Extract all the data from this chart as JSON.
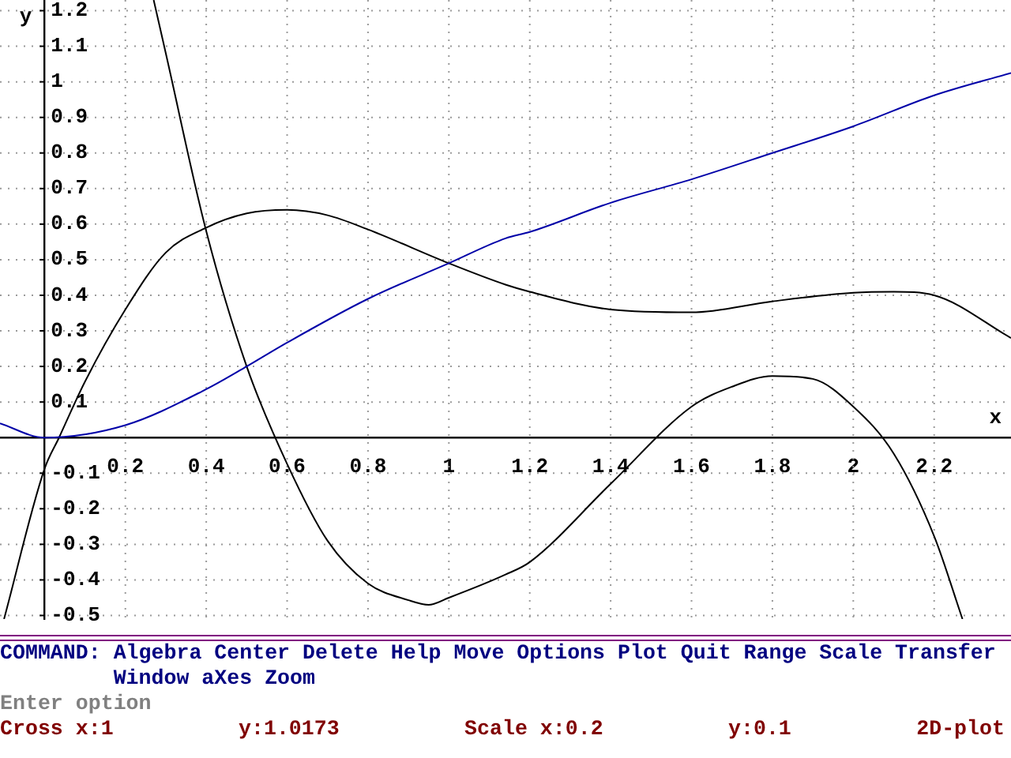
{
  "chart_data": {
    "type": "line",
    "xlabel": "x",
    "ylabel": "y",
    "xlim": [
      -0.11,
      2.39
    ],
    "ylim": [
      -0.51,
      1.23
    ],
    "xticks": [
      0.2,
      0.4,
      0.6,
      0.8,
      1,
      1.2,
      1.4,
      1.6,
      1.8,
      2,
      2.2
    ],
    "yticks": [
      -0.5,
      -0.4,
      -0.3,
      -0.2,
      -0.1,
      0.1,
      0.2,
      0.3,
      0.4,
      0.5,
      0.6,
      0.7,
      0.8,
      0.9,
      1,
      1.1,
      1.2
    ],
    "grid": true,
    "legend": false,
    "marker": "none",
    "line_style": "solid",
    "series": [
      {
        "color": "#0000a8",
        "x": [
          -0.11,
          0,
          0.2,
          0.4,
          0.5,
          0.6,
          0.8,
          1,
          1.14,
          1.2,
          1.4,
          1.6,
          1.8,
          2,
          2.2,
          2.39
        ],
        "values": [
          0.04,
          0,
          0.035,
          0.136,
          0.2,
          0.267,
          0.39,
          0.49,
          0.56,
          0.578,
          0.66,
          0.726,
          0.8,
          0.875,
          0.962,
          1.025
        ]
      },
      {
        "color": "#000000",
        "x": [
          -0.1,
          0,
          0.036,
          0.1,
          0.2,
          0.3,
          0.4,
          0.5,
          0.6,
          0.7,
          0.8,
          1,
          1.14,
          1.2,
          1.4,
          1.6,
          1.8,
          2,
          2.1,
          2.2,
          2.39
        ],
        "values": [
          -0.51,
          -0.088,
          0,
          0.157,
          0.36,
          0.52,
          0.59,
          0.63,
          0.64,
          0.625,
          0.585,
          0.49,
          0.43,
          0.41,
          0.36,
          0.352,
          0.383,
          0.407,
          0.41,
          0.4,
          0.28
        ]
      },
      {
        "color": "#000000",
        "x": [
          0.27,
          0.3,
          0.4,
          0.5,
          0.6,
          0.7,
          0.8,
          0.9,
          0.95,
          1,
          1.14,
          1.2,
          1.4,
          1.6,
          1.7,
          1.8,
          1.9,
          2,
          2.1,
          2.2,
          2.27
        ],
        "values": [
          1.23,
          1.08,
          0.58,
          0.2,
          -0.074,
          -0.29,
          -0.41,
          -0.457,
          -0.47,
          -0.45,
          -0.385,
          -0.35,
          -0.13,
          0.087,
          0.143,
          0.173,
          0.165,
          0.087,
          -0.045,
          -0.277,
          -0.51
        ]
      }
    ],
    "annotations": [
      "COMMAND: Algebra Center Delete Help Move Options Plot Quit Range Scale Transfer Window aXes Zoom",
      "Enter option",
      "Cross x:1",
      "y:1.0173",
      "Scale x:0.2",
      "y:0.1",
      "2D-plot"
    ]
  }
}
